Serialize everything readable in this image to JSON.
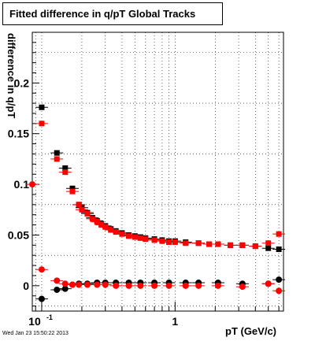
{
  "chart_data": {
    "type": "scatter",
    "title": "Fitted difference in q/pT  Global Tracks",
    "xlabel": "pT (GeV/c)",
    "ylabel": "difference in q/pT",
    "x_scale": "log",
    "xlim": [
      0.085,
      6.5
    ],
    "ylim": [
      -0.025,
      0.25
    ],
    "grid": true,
    "x_tick_labels": [
      {
        "value": 0.1,
        "label": "10^-1"
      },
      {
        "value": 1,
        "label": "1"
      }
    ],
    "y_tick_labels": [
      {
        "value": 0,
        "label": "0"
      },
      {
        "value": 0.05,
        "label": "0.05"
      },
      {
        "value": 0.1,
        "label": "0.1"
      },
      {
        "value": 0.15,
        "label": "0.15"
      },
      {
        "value": 0.2,
        "label": "0.2"
      }
    ],
    "series": [
      {
        "color": "#000000",
        "x": [
          0.1,
          0.13,
          0.15,
          0.17,
          0.19,
          0.2,
          0.22,
          0.24,
          0.26,
          0.28,
          0.3,
          0.33,
          0.36,
          0.4,
          0.45,
          0.5,
          0.55,
          0.6,
          0.7,
          0.8,
          0.9,
          1.0,
          1.2,
          1.5,
          1.8,
          2.1,
          2.6,
          3.2,
          4.0,
          5.0,
          6.0
        ],
        "y": [
          0.176,
          0.131,
          0.116,
          0.096,
          0.08,
          0.077,
          0.072,
          0.067,
          0.064,
          0.061,
          0.059,
          0.056,
          0.054,
          0.052,
          0.05,
          0.049,
          0.048,
          0.047,
          0.046,
          0.045,
          0.044,
          0.044,
          0.043,
          0.042,
          0.041,
          0.041,
          0.04,
          0.04,
          0.039,
          0.037,
          0.036
        ]
      },
      {
        "color": "#ff0000",
        "x": [
          0.085,
          0.1,
          0.13,
          0.15,
          0.17,
          0.19,
          0.2,
          0.22,
          0.24,
          0.26,
          0.28,
          0.3,
          0.33,
          0.36,
          0.4,
          0.45,
          0.5,
          0.55,
          0.6,
          0.7,
          0.8,
          0.9,
          1.0,
          1.2,
          1.5,
          1.8,
          2.1,
          2.6,
          3.2,
          4.0,
          5.0,
          6.0
        ],
        "y": [
          0.1,
          0.16,
          0.125,
          0.112,
          0.093,
          0.08,
          0.075,
          0.071,
          0.066,
          0.063,
          0.06,
          0.058,
          0.055,
          0.053,
          0.051,
          0.049,
          0.048,
          0.047,
          0.046,
          0.045,
          0.044,
          0.043,
          0.043,
          0.042,
          0.042,
          0.041,
          0.041,
          0.04,
          0.04,
          0.039,
          0.042,
          0.051
        ]
      },
      {
        "color": "#000000",
        "x": [
          0.1,
          0.13,
          0.15,
          0.17,
          0.19,
          0.22,
          0.26,
          0.3,
          0.36,
          0.45,
          0.55,
          0.7,
          0.9,
          1.2,
          1.5,
          2.1,
          3.2,
          5.0,
          6.0
        ],
        "y": [
          -0.013,
          -0.004,
          -0.003,
          0.001,
          0.002,
          0.002,
          0.003,
          0.003,
          0.003,
          0.003,
          0.003,
          0.003,
          0.003,
          0.003,
          0.003,
          0.003,
          0.002,
          0.002,
          0.006
        ]
      },
      {
        "color": "#ff0000",
        "x": [
          0.1,
          0.13,
          0.15,
          0.17,
          0.19,
          0.22,
          0.26,
          0.3,
          0.36,
          0.45,
          0.55,
          0.7,
          0.9,
          1.2,
          1.5,
          2.1,
          3.2,
          5.0,
          6.0
        ],
        "y": [
          0.016,
          0.005,
          0.002,
          0.001,
          0.001,
          0.001,
          0.001,
          0.001,
          0.0,
          0.0,
          0.0,
          0.0,
          0.0,
          0.0,
          0.0,
          0.0,
          -0.001,
          0.002,
          -0.005
        ]
      }
    ]
  },
  "labels": {
    "title": "Fitted difference in q/pT  Global Tracks",
    "ylabel": "difference in q/pT",
    "xlabel": "pT (GeV/c)",
    "timestamp": "Wed Jan 23 15:50:22 2013"
  }
}
